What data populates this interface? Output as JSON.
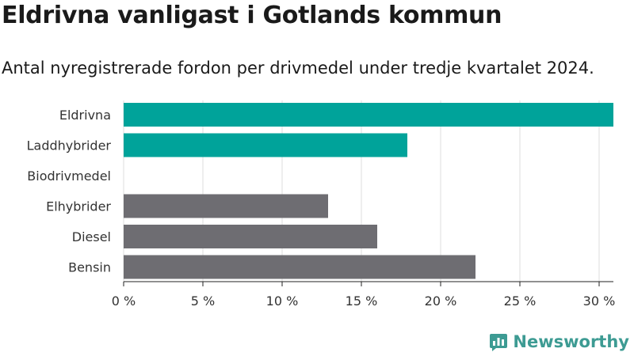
{
  "header": {
    "title": "Eldrivna vanligast i Gotlands kommun",
    "subtitle": "Antal nyregistrerade fordon per drivmedel under tredje kvartalet 2024."
  },
  "brand": {
    "name": "Newsworthy",
    "color": "#3d9b93"
  },
  "colors": {
    "highlight": "#00a39a",
    "neutral": "#6e6d72",
    "grid": "#dddddd",
    "axis": "#222222"
  },
  "chart_data": {
    "type": "bar",
    "orientation": "horizontal",
    "title": "Eldrivna vanligast i Gotlands kommun",
    "subtitle": "Antal nyregistrerade fordon per drivmedel under tredje kvartalet 2024.",
    "categories": [
      "Eldrivna",
      "Laddhybrider",
      "Biodrivmedel",
      "Elhybrider",
      "Diesel",
      "Bensin"
    ],
    "values": [
      30.9,
      17.9,
      0,
      12.9,
      16.0,
      22.2
    ],
    "bar_colors": [
      "#00a39a",
      "#00a39a",
      "#00a39a",
      "#6e6d72",
      "#6e6d72",
      "#6e6d72"
    ],
    "xlim": [
      0,
      30.9
    ],
    "xticks": [
      0,
      5,
      10,
      15,
      20,
      25,
      30
    ],
    "xtick_labels": [
      "0 %",
      "5 %",
      "10 %",
      "15 %",
      "20 %",
      "25 %",
      "30 %"
    ],
    "grid": "vertical",
    "xlabel": "",
    "ylabel": ""
  }
}
